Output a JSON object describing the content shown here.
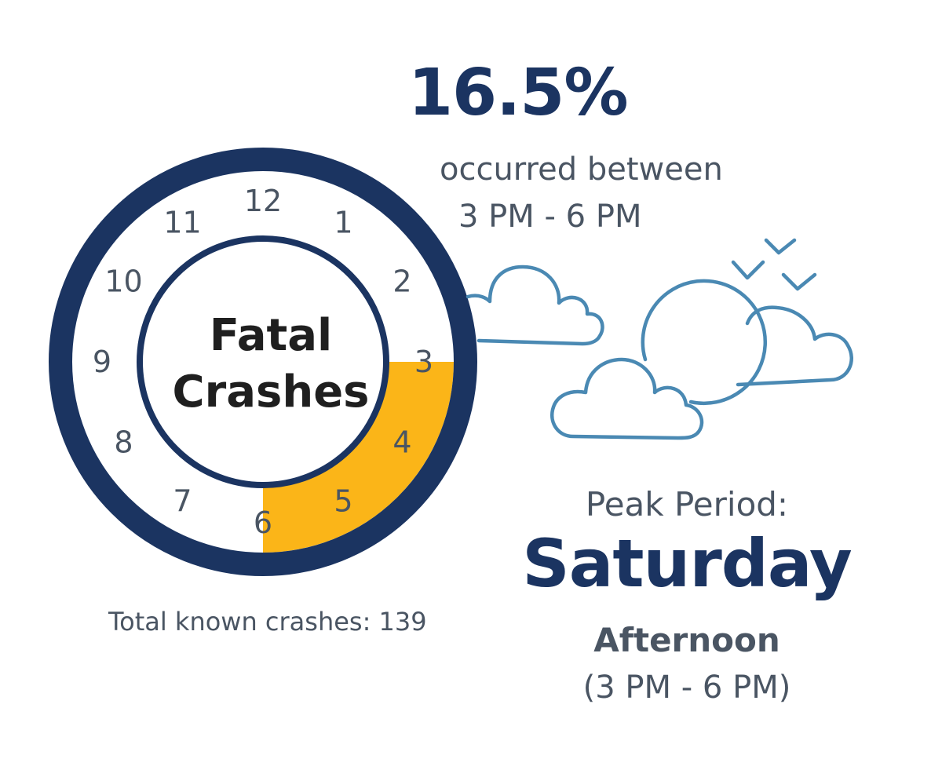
{
  "stat": {
    "percent": "16.5%",
    "line1": "occurred between",
    "line2": "3 PM - 6 PM"
  },
  "clock": {
    "title_line1": "Fatal",
    "title_line2": "Crashes",
    "hour_labels": [
      "12",
      "1",
      "2",
      "3",
      "4",
      "5",
      "6",
      "7",
      "8",
      "9",
      "10",
      "11"
    ],
    "highlight_start_hour": 3,
    "highlight_end_hour": 6
  },
  "total": "Total known crashes: 139",
  "peak": {
    "label": "Peak Period:",
    "day": "Saturday",
    "part_of_day": "Afternoon",
    "range": "(3 PM - 6 PM)"
  },
  "colors": {
    "navy": "#1b3461",
    "gray_text": "#4a5563",
    "highlight": "#fbb518",
    "cloud_stroke": "#4a89b3"
  },
  "icons": [
    "clock-icon",
    "cloud-icon",
    "sun-icon",
    "bird-icon"
  ]
}
